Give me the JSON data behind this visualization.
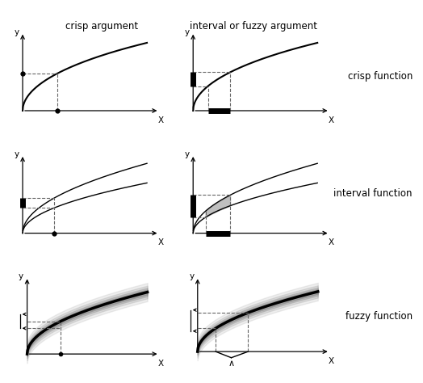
{
  "col_headers": [
    "crisp argument",
    "interval or fuzzy argument"
  ],
  "row_labels": [
    "crisp function",
    "interval function",
    "fuzzy function"
  ],
  "bg_color": "#ffffff",
  "dashed_color": "#666666",
  "fill_color": "#aaaaaa",
  "curve_lw": 1.5,
  "bold_curve_lw": 2.5,
  "bar_lw": 5,
  "dash_lw": 0.8,
  "header_fontsize": 8.5,
  "label_fontsize": 8.5,
  "axis_label_fontsize": 7.5
}
